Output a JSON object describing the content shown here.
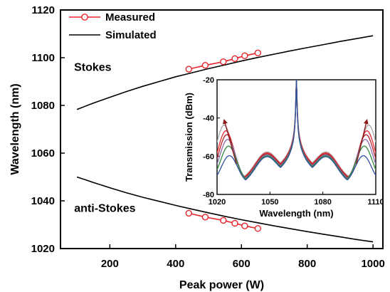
{
  "chart_data": [
    {
      "type": "line",
      "xlabel": "Peak power (W)",
      "ylabel": "Wavelength (nm)",
      "xlim": [
        50,
        1030
      ],
      "ylim": [
        1020,
        1120
      ],
      "xticks": [
        200,
        400,
        600,
        800,
        1000
      ],
      "yticks": [
        1020,
        1040,
        1060,
        1080,
        1100,
        1120
      ],
      "legend": {
        "position": "top-left",
        "entries": [
          {
            "label": "Measured",
            "style": "red-line-open-circles",
            "color": "#e8252b"
          },
          {
            "label": "Simulated",
            "style": "black-line",
            "color": "#000000"
          }
        ]
      },
      "annotations": [
        {
          "text": "Stokes",
          "x": 148,
          "y": 1094.5
        },
        {
          "text": "anti-Stokes",
          "x": 185,
          "y": 1035.3
        }
      ],
      "series": [
        {
          "name": "Simulated",
          "branch": "Stokes",
          "color": "#000000",
          "x": [
            100,
            150,
            200,
            250,
            300,
            350,
            400,
            450,
            500,
            550,
            600,
            650,
            700,
            750,
            800,
            850,
            900,
            950,
            1000
          ],
          "y": [
            1078.3,
            1081.0,
            1083.4,
            1085.8,
            1088.0,
            1090.0,
            1092.0,
            1093.7,
            1095.4,
            1097.0,
            1098.6,
            1100.1,
            1101.5,
            1102.9,
            1104.2,
            1105.5,
            1106.8,
            1108.0,
            1109.2
          ]
        },
        {
          "name": "Simulated",
          "branch": "anti-Stokes",
          "color": "#000000",
          "x": [
            100,
            150,
            200,
            250,
            300,
            350,
            400,
            450,
            500,
            550,
            600,
            650,
            700,
            750,
            800,
            850,
            900,
            950,
            1000
          ],
          "y": [
            1050.0,
            1047.7,
            1045.5,
            1043.4,
            1041.5,
            1039.8,
            1038.1,
            1036.5,
            1035.0,
            1033.5,
            1032.1,
            1030.8,
            1029.5,
            1028.3,
            1027.1,
            1026.0,
            1024.9,
            1023.8,
            1022.8
          ]
        },
        {
          "name": "Measured",
          "branch": "Stokes",
          "color": "#e8252b",
          "x": [
            440,
            490,
            545,
            580,
            610,
            650
          ],
          "y": [
            1095.2,
            1096.8,
            1098.3,
            1099.6,
            1100.8,
            1102.0
          ]
        },
        {
          "name": "Measured",
          "branch": "anti-Stokes",
          "color": "#e8252b",
          "x": [
            440,
            490,
            545,
            580,
            610,
            650
          ],
          "y": [
            1034.8,
            1033.2,
            1031.8,
            1030.6,
            1029.5,
            1028.4
          ]
        }
      ]
    },
    {
      "type": "line",
      "inset": true,
      "xlabel": "Wavelength (nm)",
      "ylabel": "Transmission (dBm)",
      "xlim": [
        1020,
        1110
      ],
      "ylim": [
        -80,
        -20
      ],
      "xticks": [
        1020,
        1050,
        1080,
        1110
      ],
      "yticks": [
        -80,
        -60,
        -40,
        -20
      ],
      "arrows": [
        {
          "from": [
            1031,
            -64
          ],
          "to": [
            1024,
            -41
          ],
          "color": "#8b1a1a"
        },
        {
          "from": [
            1099,
            -64
          ],
          "to": [
            1105,
            -41
          ],
          "color": "#8b1a1a"
        }
      ],
      "series": [
        {
          "color": "#a8a8a8",
          "peak_dbm": -44,
          "baseline_dbm": -72.5,
          "sideband_width_nm": 6.5,
          "sideband_offset_nm": 41
        },
        {
          "color": "#e8252b",
          "peak_dbm": -47,
          "baseline_dbm": -73,
          "sideband_width_nm": 6.5,
          "sideband_offset_nm": 40
        },
        {
          "color": "#b2202a",
          "peak_dbm": -49,
          "baseline_dbm": -73.5,
          "sideband_width_nm": 6.5,
          "sideband_offset_nm": 39.5
        },
        {
          "color": "#8c6aa8",
          "peak_dbm": -51.5,
          "baseline_dbm": -74,
          "sideband_width_nm": 6.5,
          "sideband_offset_nm": 39
        },
        {
          "color": "#2f8a3c",
          "peak_dbm": -55,
          "baseline_dbm": -74.5,
          "sideband_width_nm": 6.5,
          "sideband_offset_nm": 38.5
        },
        {
          "color": "#2f4fa0",
          "peak_dbm": -60,
          "baseline_dbm": -75,
          "sideband_width_nm": 6.5,
          "sideband_offset_nm": 38
        }
      ]
    }
  ]
}
